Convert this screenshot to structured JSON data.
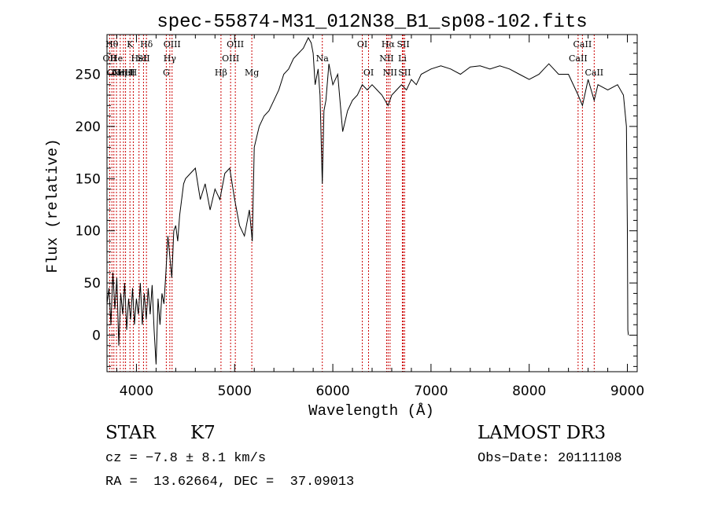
{
  "chart_data": {
    "type": "line",
    "title": "spec-55874-M31_012N38_B1_sp08-102.fits",
    "xlabel": "Wavelength (Å)",
    "ylabel": "Flux (relative)",
    "xlim": [
      3700,
      9100
    ],
    "ylim": [
      -35,
      288
    ],
    "xticks": [
      {
        "value": 4000,
        "label": "4000"
      },
      {
        "value": 5000,
        "label": "5000"
      },
      {
        "value": 6000,
        "label": "6000"
      },
      {
        "value": 7000,
        "label": "7000"
      },
      {
        "value": 8000,
        "label": "8000"
      },
      {
        "value": 9000,
        "label": "9000"
      }
    ],
    "yticks": [
      {
        "value": 0,
        "label": "0"
      },
      {
        "value": 50,
        "label": "50"
      },
      {
        "value": 100,
        "label": "100"
      },
      {
        "value": 150,
        "label": "150"
      },
      {
        "value": 200,
        "label": "200"
      },
      {
        "value": 250,
        "label": "250"
      }
    ],
    "spectrum": {
      "x": [
        3700,
        3720,
        3740,
        3760,
        3780,
        3800,
        3820,
        3840,
        3860,
        3880,
        3900,
        3920,
        3940,
        3960,
        3980,
        4000,
        4020,
        4040,
        4060,
        4080,
        4100,
        4120,
        4140,
        4160,
        4180,
        4200,
        4220,
        4240,
        4260,
        4280,
        4300,
        4320,
        4340,
        4360,
        4380,
        4400,
        4420,
        4440,
        4460,
        4480,
        4500,
        4550,
        4600,
        4650,
        4700,
        4750,
        4800,
        4850,
        4900,
        4950,
        5000,
        5050,
        5100,
        5150,
        5180,
        5200,
        5250,
        5300,
        5350,
        5400,
        5450,
        5500,
        5550,
        5600,
        5650,
        5700,
        5750,
        5780,
        5800,
        5820,
        5850,
        5870,
        5893,
        5910,
        5930,
        5960,
        6000,
        6050,
        6100,
        6150,
        6200,
        6250,
        6300,
        6350,
        6400,
        6450,
        6500,
        6563,
        6600,
        6650,
        6700,
        6750,
        6800,
        6850,
        6900,
        7000,
        7100,
        7200,
        7300,
        7400,
        7500,
        7600,
        7700,
        7800,
        7900,
        8000,
        8100,
        8150,
        8200,
        8300,
        8400,
        8498,
        8542,
        8600,
        8662,
        8700,
        8800,
        8900,
        8960,
        8990,
        9000,
        9005,
        9010
      ],
      "y": [
        30,
        45,
        10,
        60,
        25,
        55,
        -10,
        40,
        20,
        50,
        5,
        35,
        15,
        45,
        10,
        35,
        20,
        50,
        10,
        40,
        15,
        45,
        20,
        48,
        5,
        -28,
        35,
        10,
        40,
        30,
        60,
        95,
        75,
        55,
        100,
        105,
        90,
        115,
        130,
        145,
        150,
        155,
        160,
        130,
        145,
        120,
        140,
        130,
        155,
        160,
        130,
        105,
        95,
        120,
        90,
        180,
        200,
        210,
        215,
        225,
        235,
        250,
        255,
        265,
        270,
        275,
        285,
        280,
        270,
        240,
        255,
        230,
        145,
        215,
        225,
        260,
        240,
        250,
        195,
        215,
        225,
        230,
        240,
        235,
        240,
        235,
        230,
        220,
        230,
        235,
        240,
        235,
        245,
        240,
        250,
        255,
        258,
        255,
        250,
        257,
        258,
        255,
        258,
        255,
        250,
        245,
        250,
        255,
        260,
        250,
        250,
        230,
        220,
        245,
        225,
        240,
        235,
        240,
        230,
        200,
        100,
        5,
        0
      ]
    },
    "lines": [
      {
        "x": 3727,
        "label": "OII",
        "row": 1
      },
      {
        "x": 3750,
        "label": "Hθ",
        "row": 0
      },
      {
        "x": 3770,
        "label": "OII",
        "row": 2
      },
      {
        "x": 3797,
        "label": "He",
        "row": 1
      },
      {
        "x": 3835,
        "label": "Hη",
        "row": 2
      },
      {
        "x": 3868,
        "label": "NeIII",
        "row": 3
      },
      {
        "x": 3889,
        "label": "HeI",
        "row": 3
      },
      {
        "x": 3934,
        "label": "K",
        "row": 0
      },
      {
        "x": 3968,
        "label": "H",
        "row": 2
      },
      {
        "x": 4026,
        "label": "HeI",
        "row": 1
      },
      {
        "x": 4072,
        "label": "SII",
        "row": 1
      },
      {
        "x": 4102,
        "label": "Hδ",
        "row": 0
      },
      {
        "x": 4304,
        "label": "G",
        "row": 2
      },
      {
        "x": 4340,
        "label": "Hγ",
        "row": 1
      },
      {
        "x": 4363,
        "label": "OIII",
        "row": 0
      },
      {
        "x": 4861,
        "label": "Hβ",
        "row": 2
      },
      {
        "x": 4959,
        "label": "OIII",
        "row": 1
      },
      {
        "x": 5007,
        "label": "OIII",
        "row": 0
      },
      {
        "x": 5175,
        "label": "Mg",
        "row": 2
      },
      {
        "x": 5893,
        "label": "Na",
        "row": 1
      },
      {
        "x": 6300,
        "label": "OI",
        "row": 0
      },
      {
        "x": 6364,
        "label": "OI",
        "row": 2
      },
      {
        "x": 6548,
        "label": "NII",
        "row": 1
      },
      {
        "x": 6563,
        "label": "Hα",
        "row": 0
      },
      {
        "x": 6583,
        "label": "NII",
        "row": 2
      },
      {
        "x": 6708,
        "label": "Li",
        "row": 1
      },
      {
        "x": 6717,
        "label": "SII",
        "row": 0
      },
      {
        "x": 6731,
        "label": "SII",
        "row": 2
      },
      {
        "x": 8498,
        "label": "CaII",
        "row": 1
      },
      {
        "x": 8542,
        "label": "CaII",
        "row": 0
      },
      {
        "x": 8662,
        "label": "CaII",
        "row": 2
      }
    ],
    "colors": {
      "spectrum": "#000000",
      "lines": "#cc0000",
      "axes": "#000000"
    },
    "grid": false
  },
  "info": {
    "object_class": "STAR",
    "subclass": "K7",
    "survey": "LAMOST DR3",
    "cz": "cz = −7.8 ± 8.1 km/s",
    "obs_date": "Obs−Date: 20111108",
    "radec": "RA =  13.62664, DEC =  37.09013"
  }
}
